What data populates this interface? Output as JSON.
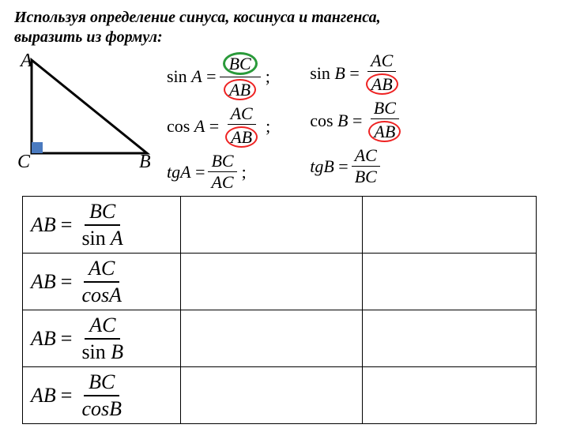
{
  "title_line1": "Используя определение синуса, косинуса и тангенса,",
  "title_line2": "выразить из формул:",
  "triangle": {
    "A": "A",
    "B": "B",
    "C": "C",
    "stroke": "#000000",
    "right_angle_fill": "#4a7abf",
    "vertices": {
      "A": [
        22,
        10
      ],
      "C": [
        22,
        128
      ],
      "B": [
        168,
        128
      ]
    }
  },
  "style": {
    "ring_red": "#e22222",
    "ring_green": "#2a9a3a",
    "text_color": "#000000",
    "background": "#ffffff",
    "font_family": "Times New Roman",
    "formula_fontsize_pt": 16,
    "table_fontsize_pt": 20,
    "title_fontsize_pt": 15,
    "border_color": "#000000"
  },
  "formulas": {
    "colA": [
      {
        "lhs_pre": "sin",
        "lhs_var": "A",
        "num": "BC",
        "den": "AB",
        "num_ring": "green",
        "den_ring": "red",
        "semi": true
      },
      {
        "lhs_pre": "cos",
        "lhs_var": "A",
        "num": "AC",
        "den": "AB",
        "den_ring": "red",
        "semi": true
      },
      {
        "lhs_pre": "tg",
        "lhs_var": "A",
        "num": "BC",
        "den": "AC",
        "semi": true,
        "lhs_it": true
      }
    ],
    "colB": [
      {
        "lhs_pre": "sin",
        "lhs_var": "B",
        "num": "AC",
        "den": "AB",
        "den_ring": "red"
      },
      {
        "lhs_pre": "cos",
        "lhs_var": "B",
        "num": "BC",
        "den": "AB",
        "den_ring": "red"
      },
      {
        "lhs_pre": "tg",
        "lhs_var": "B",
        "num": "AC",
        "den": "BC",
        "lhs_it": true
      }
    ]
  },
  "table": {
    "columns": 3,
    "rows": [
      {
        "lhs": "AB",
        "num": "BC",
        "den_pre": "sin",
        "den_var": "A"
      },
      {
        "lhs": "AB",
        "num": "AC",
        "den_pre": "cos",
        "den_var": "A",
        "den_it": true
      },
      {
        "lhs": "AB",
        "num": "AC",
        "den_pre": "sin",
        "den_var": "B"
      },
      {
        "lhs": "AB",
        "num": "BC",
        "den_pre": "cos",
        "den_var": "B",
        "den_it": true
      }
    ]
  }
}
